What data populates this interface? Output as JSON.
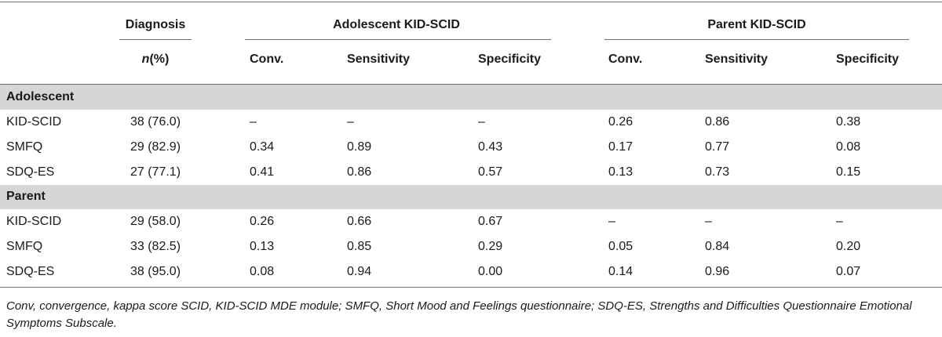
{
  "header": {
    "diagnosis": "Diagnosis",
    "adolescent_kidscid": "Adolescent KID-SCID",
    "parent_kidscid": "Parent KID-SCID",
    "n_label_italic": "n",
    "n_label_rest": "(%)",
    "columns": [
      "Conv.",
      "Sensitivity",
      "Specificity",
      "Conv.",
      "Sensitivity",
      "Specificity"
    ]
  },
  "sections": [
    {
      "title": "Adolescent",
      "rows": [
        {
          "label": "KID-SCID",
          "n": "38 (76.0)",
          "a_conv": "–",
          "a_sens": "–",
          "a_spec": "–",
          "p_conv": "0.26",
          "p_sens": "0.86",
          "p_spec": "0.38"
        },
        {
          "label": "SMFQ",
          "n": "29 (82.9)",
          "a_conv": "0.34",
          "a_sens": "0.89",
          "a_spec": "0.43",
          "p_conv": "0.17",
          "p_sens": "0.77",
          "p_spec": "0.08"
        },
        {
          "label": "SDQ-ES",
          "n": "27 (77.1)",
          "a_conv": "0.41",
          "a_sens": "0.86",
          "a_spec": "0.57",
          "p_conv": "0.13",
          "p_sens": "0.73",
          "p_spec": "0.15"
        }
      ]
    },
    {
      "title": "Parent",
      "rows": [
        {
          "label": "KID-SCID",
          "n": "29 (58.0)",
          "a_conv": "0.26",
          "a_sens": "0.66",
          "a_spec": "0.67",
          "p_conv": "–",
          "p_sens": "–",
          "p_spec": "–"
        },
        {
          "label": "SMFQ",
          "n": "33 (82.5)",
          "a_conv": "0.13",
          "a_sens": "0.85",
          "a_spec": "0.29",
          "p_conv": "0.05",
          "p_sens": "0.84",
          "p_spec": "0.20"
        },
        {
          "label": "SDQ-ES",
          "n": "38 (95.0)",
          "a_conv": "0.08",
          "a_sens": "0.94",
          "a_spec": "0.00",
          "p_conv": "0.14",
          "p_sens": "0.96",
          "p_spec": "0.07"
        }
      ]
    }
  ],
  "footnote": "Conv, convergence, kappa score SCID, KID-SCID MDE module; SMFQ, Short Mood and Feelings questionnaire; SDQ-ES, Strengths and Difficulties Questionnaire Emotional Symptoms Subscale.",
  "colors": {
    "band": "#d6d6d6",
    "rule": "#6e6e6e",
    "text": "#1a1a1a"
  }
}
